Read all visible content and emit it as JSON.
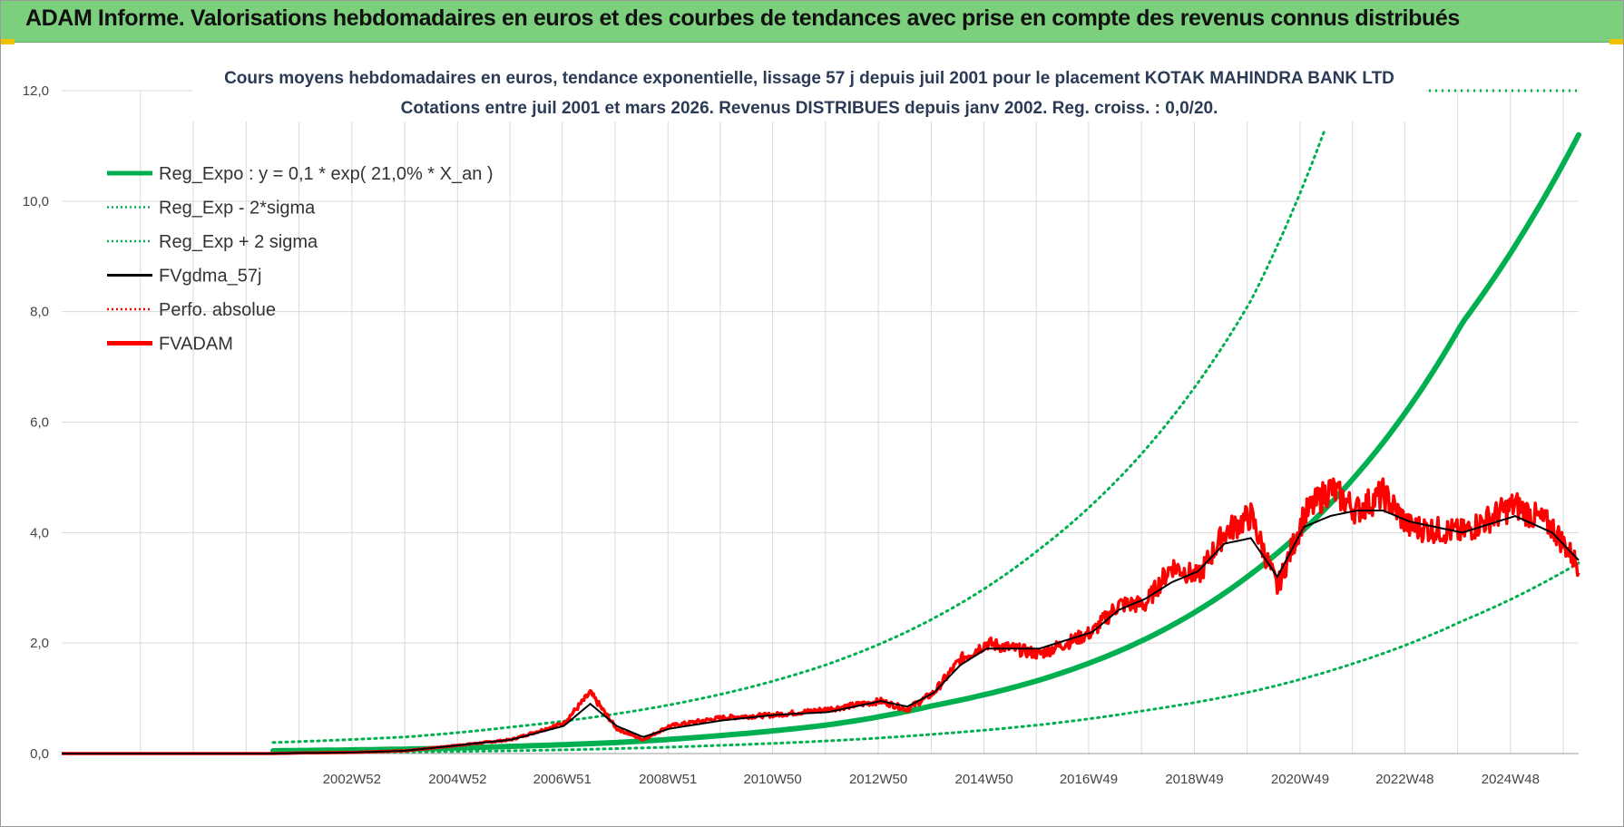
{
  "banner": {
    "title": "ADAM Informe. Valorisations hebdomadaires en euros et des courbes de tendances avec prise en compte des revenus connus distribués"
  },
  "colors": {
    "banner_bg": "#7ccf7c",
    "reg_expo": "#00b050",
    "fvgdma": "#000000",
    "fvadam": "#ff0000",
    "grid": "#d9d9d9"
  },
  "chart_data": {
    "type": "line",
    "title": [
      "Cours moyens hebdomadaires en euros, tendance exponentielle, lissage 57 j depuis juil 2001 pour le placement KOTAK MAHINDRA BANK LTD",
      "Cotations entre juil 2001 et mars 2026. Revenus DISTRIBUES depuis janv 2002. Reg. croiss. : 0,0/20."
    ],
    "xlabel": "",
    "ylabel": "",
    "x_start_year": 1997.5,
    "x_end_year": 2026.2,
    "ylim": [
      0,
      12
    ],
    "yticks": [
      "0,0",
      "2,0",
      "4,0",
      "6,0",
      "8,0",
      "10,0",
      "12,0"
    ],
    "xticks": [
      {
        "label": "2002W52",
        "year": 2002.99
      },
      {
        "label": "2004W52",
        "year": 2004.99
      },
      {
        "label": "2006W51",
        "year": 2006.97
      },
      {
        "label": "2008W51",
        "year": 2008.97
      },
      {
        "label": "2010W50",
        "year": 2010.95
      },
      {
        "label": "2012W50",
        "year": 2012.95
      },
      {
        "label": "2014W50",
        "year": 2014.95
      },
      {
        "label": "2016W49",
        "year": 2016.93
      },
      {
        "label": "2018W49",
        "year": 2018.93
      },
      {
        "label": "2020W49",
        "year": 2020.93
      },
      {
        "label": "2022W48",
        "year": 2022.91
      },
      {
        "label": "2024W48",
        "year": 2024.91
      }
    ],
    "legend": [
      {
        "label": "Reg_Expo : y = 0,1 * exp( 21,0% *  X_an )",
        "style": "thick-solid",
        "color": "#00b050"
      },
      {
        "label": "Reg_Exp - 2*sigma",
        "style": "dotted",
        "color": "#00b050"
      },
      {
        "label": "Reg_Exp + 2 sigma",
        "style": "dotted",
        "color": "#00b050"
      },
      {
        "label": "FVgdma_57j",
        "style": "solid",
        "color": "#000000"
      },
      {
        "label": "Perfo. absolue",
        "style": "dotted",
        "color": "#ff0000"
      },
      {
        "label": "FVADAM",
        "style": "thick-solid",
        "color": "#ff0000"
      }
    ],
    "legend_position": "top-left",
    "series": [
      {
        "name": "Reg_Expo",
        "start_year": 2001.5,
        "end_year": 2026.2,
        "points": [
          [
            2001.5,
            0.05
          ],
          [
            2004,
            0.08
          ],
          [
            2006,
            0.13
          ],
          [
            2008,
            0.2
          ],
          [
            2010,
            0.33
          ],
          [
            2012,
            0.52
          ],
          [
            2014,
            0.87
          ],
          [
            2016,
            1.33
          ],
          [
            2018,
            2.07
          ],
          [
            2020,
            3.25
          ],
          [
            2022,
            5.05
          ],
          [
            2024,
            7.8
          ],
          [
            2026.2,
            11.2
          ]
        ]
      },
      {
        "name": "Reg_Exp - 2*sigma",
        "points": [
          [
            2001.5,
            0.01
          ],
          [
            2004,
            0.03
          ],
          [
            2006,
            0.05
          ],
          [
            2008,
            0.09
          ],
          [
            2010,
            0.15
          ],
          [
            2012,
            0.23
          ],
          [
            2014,
            0.35
          ],
          [
            2016,
            0.52
          ],
          [
            2018,
            0.78
          ],
          [
            2020,
            1.12
          ],
          [
            2022,
            1.65
          ],
          [
            2024,
            2.4
          ],
          [
            2026.2,
            3.45
          ]
        ]
      },
      {
        "name": "Reg_Exp + 2 sigma",
        "points": [
          [
            2001.5,
            0.2
          ],
          [
            2004,
            0.3
          ],
          [
            2006,
            0.48
          ],
          [
            2008,
            0.72
          ],
          [
            2010,
            1.08
          ],
          [
            2012,
            1.62
          ],
          [
            2014,
            2.45
          ],
          [
            2016,
            3.7
          ],
          [
            2018,
            5.5
          ],
          [
            2020,
            8.2
          ],
          [
            2021.4,
            11.3
          ]
        ]
      },
      {
        "name": "FVgdma_57j",
        "points": [
          [
            1997.5,
            0.0
          ],
          [
            2001.5,
            0.0
          ],
          [
            2002,
            0.01
          ],
          [
            2003,
            0.02
          ],
          [
            2004,
            0.05
          ],
          [
            2005,
            0.15
          ],
          [
            2006,
            0.25
          ],
          [
            2007,
            0.5
          ],
          [
            2007.5,
            0.9
          ],
          [
            2008,
            0.5
          ],
          [
            2008.5,
            0.3
          ],
          [
            2009,
            0.45
          ],
          [
            2010,
            0.6
          ],
          [
            2011,
            0.7
          ],
          [
            2012,
            0.75
          ],
          [
            2013,
            0.95
          ],
          [
            2013.5,
            0.85
          ],
          [
            2014,
            1.1
          ],
          [
            2014.5,
            1.6
          ],
          [
            2015,
            1.9
          ],
          [
            2016,
            1.9
          ],
          [
            2017,
            2.2
          ],
          [
            2017.5,
            2.6
          ],
          [
            2018,
            2.8
          ],
          [
            2018.5,
            3.1
          ],
          [
            2019,
            3.3
          ],
          [
            2019.5,
            3.8
          ],
          [
            2020,
            3.9
          ],
          [
            2020.5,
            3.2
          ],
          [
            2021,
            4.1
          ],
          [
            2021.5,
            4.3
          ],
          [
            2022,
            4.4
          ],
          [
            2022.5,
            4.4
          ],
          [
            2023,
            4.2
          ],
          [
            2024,
            4.0
          ],
          [
            2025,
            4.3
          ],
          [
            2025.7,
            4.0
          ],
          [
            2026.2,
            3.5
          ]
        ]
      },
      {
        "name": "FVADAM",
        "points": [
          [
            1997.5,
            0.0
          ],
          [
            2001.5,
            0.0
          ],
          [
            2002,
            0.01
          ],
          [
            2003,
            0.02
          ],
          [
            2004,
            0.05
          ],
          [
            2005,
            0.15
          ],
          [
            2006,
            0.25
          ],
          [
            2007,
            0.55
          ],
          [
            2007.5,
            1.1
          ],
          [
            2008,
            0.45
          ],
          [
            2008.5,
            0.25
          ],
          [
            2009,
            0.5
          ],
          [
            2010,
            0.65
          ],
          [
            2011,
            0.7
          ],
          [
            2012,
            0.8
          ],
          [
            2013,
            0.95
          ],
          [
            2013.5,
            0.8
          ],
          [
            2014,
            1.1
          ],
          [
            2014.5,
            1.7
          ],
          [
            2015,
            2.0
          ],
          [
            2016,
            1.8
          ],
          [
            2017,
            2.2
          ],
          [
            2017.5,
            2.7
          ],
          [
            2018,
            2.7
          ],
          [
            2018.5,
            3.4
          ],
          [
            2019,
            3.2
          ],
          [
            2019.5,
            4.0
          ],
          [
            2020,
            4.3
          ],
          [
            2020.5,
            3.0
          ],
          [
            2021,
            4.3
          ],
          [
            2021.5,
            4.8
          ],
          [
            2022,
            4.4
          ],
          [
            2022.5,
            4.7
          ],
          [
            2023,
            4.1
          ],
          [
            2024,
            4.0
          ],
          [
            2025,
            4.5
          ],
          [
            2025.7,
            4.1
          ],
          [
            2026.2,
            3.4
          ]
        ]
      },
      {
        "name": "Perfo. absolue",
        "points": []
      }
    ]
  }
}
